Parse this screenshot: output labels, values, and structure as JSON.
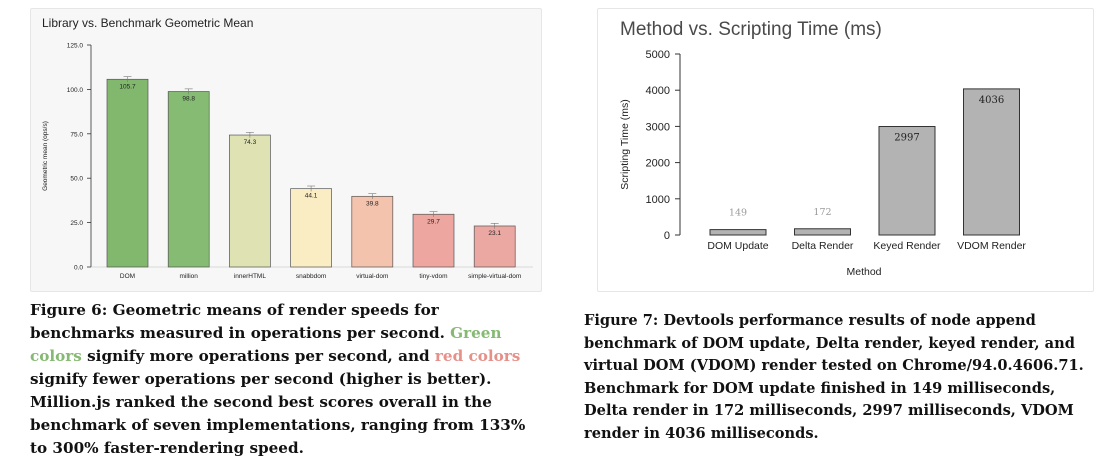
{
  "figure6": {
    "chart_data": {
      "type": "bar",
      "title": "Library vs. Benchmark Geometric Mean",
      "xlabel": "",
      "ylabel": "Geometric mean (ops/s)",
      "ylim": [
        0,
        125
      ],
      "yticks": [
        "0.0",
        "25.0",
        "50.0",
        "75.0",
        "100.0",
        "125.0"
      ],
      "categories": [
        "DOM",
        "million",
        "innerHTML",
        "snabbdom",
        "virtual-dom",
        "tiny-vdom",
        "simple-virtual-dom"
      ],
      "values": [
        105.7,
        98.8,
        74.3,
        44.1,
        39.8,
        29.7,
        23.1
      ],
      "value_labels": [
        "105.7",
        "98.8",
        "74.3",
        "44.1",
        "39.8",
        "29.7",
        "23.1"
      ],
      "error_bars": [
        1.5,
        1.5,
        1.5,
        1.5,
        1.5,
        1.5,
        1.5
      ],
      "bar_colors": [
        "#82b86e",
        "#86bb73",
        "#dfe3b3",
        "#fbedc3",
        "#f3c3ae",
        "#eea7a0",
        "#eba7a2"
      ],
      "grid": false
    },
    "caption": {
      "label": "Figure 6:",
      "text_before": " Geometric means of render speeds for benchmarks measured in operations per second. ",
      "green_text": "Green colors",
      "text_middle": " signify more operations per second, and ",
      "red_text": "red colors",
      "text_after": " signify fewer operations per second (higher is better). Million.js ranked the second best scores overall in the benchmark of seven implementations, ranging from 133% to 300% faster-rendering speed."
    },
    "colors": {
      "green_text": "#86b973",
      "red_text": "#e6908a"
    }
  },
  "figure7": {
    "chart_data": {
      "type": "bar",
      "title": "Method vs. Scripting Time (ms)",
      "xlabel": "Method",
      "ylabel": "Scripting Time (ms)",
      "ylim": [
        0,
        5000
      ],
      "yticks": [
        "0",
        "1000",
        "2000",
        "3000",
        "4000",
        "5000"
      ],
      "categories": [
        "DOM Update",
        "Delta Render",
        "Keyed Render",
        "VDOM Render"
      ],
      "values": [
        149,
        172,
        2997,
        4036
      ],
      "value_labels": [
        "149",
        "172",
        "2997",
        "4036"
      ],
      "bar_color": "#b3b3b3",
      "grid": false
    },
    "caption": {
      "text": "Figure 7: Devtools performance results of node append benchmark of DOM update, Delta render, keyed render, and virtual DOM (VDOM) render tested on Chrome/94.0.4606.71. Benchmark for DOM update finished in 149 milliseconds, Delta render in 172 milliseconds, 2997 milliseconds, VDOM render in 4036 milliseconds."
    }
  }
}
